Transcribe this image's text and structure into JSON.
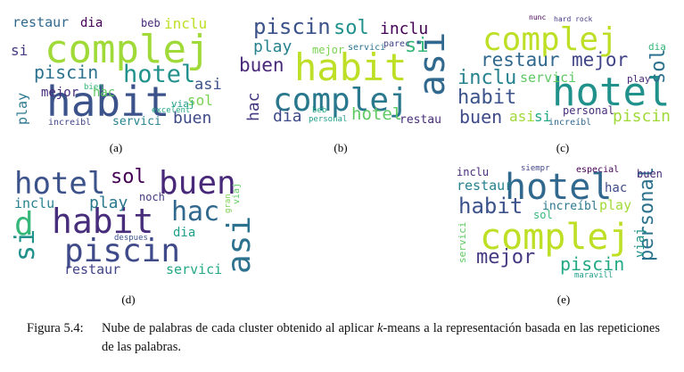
{
  "panels": [
    {
      "label": "(a)",
      "words": [
        {
          "t": "complej",
          "c": "#a0da39"
        },
        {
          "t": "habit",
          "c": "#3b528b"
        },
        {
          "t": "hotel",
          "c": "#21918c"
        },
        {
          "t": "piscin",
          "c": "#2c728e"
        },
        {
          "t": "restaur",
          "c": "#31688e"
        },
        {
          "t": "dia",
          "c": "#440154"
        },
        {
          "t": "inclu",
          "c": "#bddf26"
        },
        {
          "t": "buen",
          "c": "#3e4a89"
        },
        {
          "t": "mejor",
          "c": "#472d7b"
        },
        {
          "t": "hac",
          "c": "#5ec962"
        },
        {
          "t": "sol",
          "c": "#7ad151"
        },
        {
          "t": "asi",
          "c": "#3b528b"
        },
        {
          "t": "play",
          "c": "#2a788e"
        },
        {
          "t": "servici",
          "c": "#26828e"
        },
        {
          "t": "si",
          "c": "#443a83"
        },
        {
          "t": "beb",
          "c": "#482878"
        },
        {
          "t": "viaj",
          "c": "#1f9e89"
        },
        {
          "t": "increibl",
          "c": "#414487"
        },
        {
          "t": "bien",
          "c": "#35b779"
        },
        {
          "t": "excelent",
          "c": "#22a884"
        }
      ]
    },
    {
      "label": "(b)",
      "words": [
        {
          "t": "habit",
          "c": "#bddf26"
        },
        {
          "t": "complej",
          "c": "#2a788e"
        },
        {
          "t": "piscin",
          "c": "#3b528b"
        },
        {
          "t": "sol",
          "c": "#21918c"
        },
        {
          "t": "inclu",
          "c": "#440154"
        },
        {
          "t": "buen",
          "c": "#482878"
        },
        {
          "t": "play",
          "c": "#26828e"
        },
        {
          "t": "asi",
          "c": "#31688e"
        },
        {
          "t": "hotel",
          "c": "#5ec962"
        },
        {
          "t": "dia",
          "c": "#3e4a89"
        },
        {
          "t": "restau",
          "c": "#472d7b"
        },
        {
          "t": "si",
          "c": "#35b779"
        },
        {
          "t": "mejor",
          "c": "#7ad151"
        },
        {
          "t": "servici",
          "c": "#2c728e"
        },
        {
          "t": "hac",
          "c": "#443a83"
        },
        {
          "t": "parec",
          "c": "#414487"
        },
        {
          "t": "personal",
          "c": "#1f9e89"
        },
        {
          "t": "beb",
          "c": "#22a884"
        }
      ]
    },
    {
      "label": "(c)",
      "words": [
        {
          "t": "complej",
          "c": "#bddf26"
        },
        {
          "t": "hotel",
          "c": "#21918c"
        },
        {
          "t": "restaur",
          "c": "#31688e"
        },
        {
          "t": "mejor",
          "c": "#414487"
        },
        {
          "t": "sol",
          "c": "#2c728e"
        },
        {
          "t": "inclu",
          "c": "#26828e"
        },
        {
          "t": "habit",
          "c": "#3b528b"
        },
        {
          "t": "buen",
          "c": "#3e4a89"
        },
        {
          "t": "servici",
          "c": "#5ec962"
        },
        {
          "t": "asi",
          "c": "#a0da39"
        },
        {
          "t": "si",
          "c": "#22a884"
        },
        {
          "t": "personal",
          "c": "#472d7b"
        },
        {
          "t": "piscin",
          "c": "#a0da39"
        },
        {
          "t": "play",
          "c": "#482878"
        },
        {
          "t": "dia",
          "c": "#35b779"
        },
        {
          "t": "increíbl",
          "c": "#31688e"
        },
        {
          "t": "hard rock",
          "c": "#443a83"
        },
        {
          "t": "nunc",
          "c": "#440154"
        }
      ]
    },
    {
      "label": "(d)",
      "words": [
        {
          "t": "hotel",
          "c": "#3b528b"
        },
        {
          "t": "buen",
          "c": "#482878"
        },
        {
          "t": "habit",
          "c": "#472d7b"
        },
        {
          "t": "piscin",
          "c": "#3e4a89"
        },
        {
          "t": "sol",
          "c": "#440154"
        },
        {
          "t": "hac",
          "c": "#31688e"
        },
        {
          "t": "asi",
          "c": "#2c728e"
        },
        {
          "t": "si",
          "c": "#21918c"
        },
        {
          "t": "d",
          "c": "#35b779"
        },
        {
          "t": "inclu",
          "c": "#26828e"
        },
        {
          "t": "play",
          "c": "#2a788e"
        },
        {
          "t": "restaur",
          "c": "#414487"
        },
        {
          "t": "servici",
          "c": "#22a884"
        },
        {
          "t": "dia",
          "c": "#1f9e89"
        },
        {
          "t": "noch",
          "c": "#443a83"
        },
        {
          "t": "viaj",
          "c": "#5ec962"
        },
        {
          "t": "gran",
          "c": "#7ad151"
        },
        {
          "t": "despues",
          "c": "#3b528b"
        }
      ]
    },
    {
      "label": "(e)",
      "words": [
        {
          "t": "hotel",
          "c": "#31688e"
        },
        {
          "t": "complej",
          "c": "#bddf26"
        },
        {
          "t": "habit",
          "c": "#3b528b"
        },
        {
          "t": "restaur",
          "c": "#26828e"
        },
        {
          "t": "mejor",
          "c": "#443a83"
        },
        {
          "t": "personal",
          "c": "#2c728e"
        },
        {
          "t": "piscin",
          "c": "#22a884"
        },
        {
          "t": "buen",
          "c": "#482878"
        },
        {
          "t": "hac",
          "c": "#3e4a89"
        },
        {
          "t": "play",
          "c": "#a0da39"
        },
        {
          "t": "increíbl",
          "c": "#2a788e"
        },
        {
          "t": "inclu",
          "c": "#472d7b"
        },
        {
          "t": "sol",
          "c": "#35b779"
        },
        {
          "t": "viaj",
          "c": "#21918c"
        },
        {
          "t": "especial",
          "c": "#440154"
        },
        {
          "t": "siempr",
          "c": "#414487"
        },
        {
          "t": "servici",
          "c": "#5ec962"
        },
        {
          "t": "maravill",
          "c": "#1f9e89"
        }
      ]
    }
  ],
  "caption": {
    "label": "Figura 5.4:",
    "text_before": "Nube de palabras de cada cluster obtenido al aplicar ",
    "k": "k",
    "text_after": "-means a la representación basada en las repeticiones de las palabras."
  }
}
